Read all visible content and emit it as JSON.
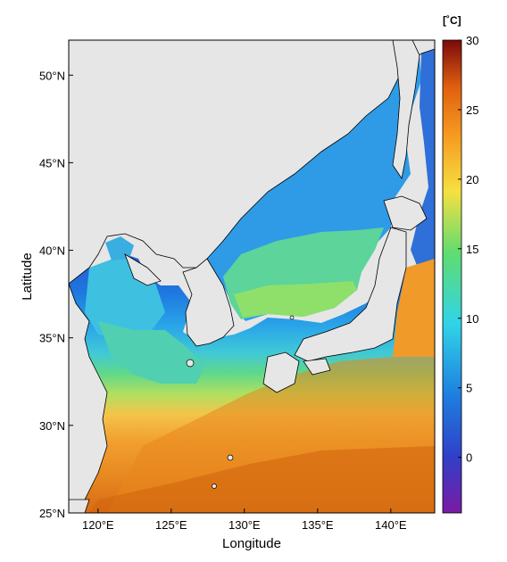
{
  "map": {
    "x_label": "Longitude",
    "y_label": "Latitude",
    "lon_range": [
      118,
      143
    ],
    "lat_range": [
      25,
      52
    ],
    "lon_ticks": [
      {
        "value": 120,
        "label": "120°E"
      },
      {
        "value": 125,
        "label": "125°E"
      },
      {
        "value": 130,
        "label": "130°E"
      },
      {
        "value": 135,
        "label": "135°E"
      },
      {
        "value": 140,
        "label": "140°E"
      }
    ],
    "lat_ticks": [
      {
        "value": 25,
        "label": "25°N"
      },
      {
        "value": 30,
        "label": "30°N"
      },
      {
        "value": 35,
        "label": "35°N"
      },
      {
        "value": 40,
        "label": "40°N"
      },
      {
        "value": 45,
        "label": "45°N"
      },
      {
        "value": 50,
        "label": "50°N"
      }
    ],
    "land_color": "#e6e6e6",
    "coastline_color": "#000000"
  },
  "colorbar": {
    "unit": "[˚C]",
    "range": [
      -4,
      30
    ],
    "ticks": [
      {
        "value": 0,
        "label": "0"
      },
      {
        "value": 5,
        "label": "5"
      },
      {
        "value": 10,
        "label": "10"
      },
      {
        "value": 15,
        "label": "15"
      },
      {
        "value": 20,
        "label": "20"
      },
      {
        "value": 25,
        "label": "25"
      },
      {
        "value": 30,
        "label": "30"
      }
    ],
    "colormap": "jet-like: purple -> blue -> cyan -> green -> yellow -> orange -> dark red"
  }
}
